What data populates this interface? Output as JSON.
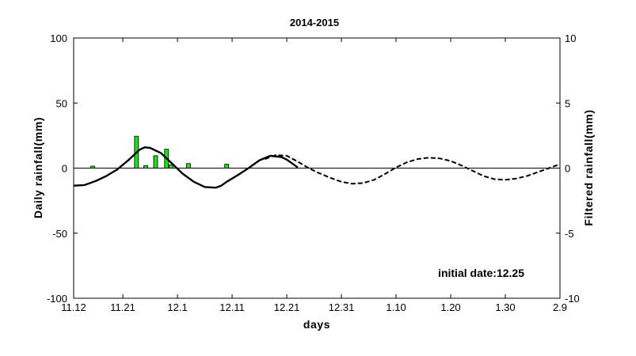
{
  "chart_data": {
    "type": "bar+line",
    "title": "2014-2015",
    "xlabel": "days",
    "ylabel_left": "Daily rainfall(mm)",
    "ylabel_right": "Filtered rainfall(mm)",
    "annotation": "initial date:12.25",
    "xlim": [
      0,
      89
    ],
    "ylim_left": [
      -100,
      100
    ],
    "ylim_right": [
      -10,
      10
    ],
    "x_ticks": [
      {
        "x": 0,
        "label": "11.12"
      },
      {
        "x": 9,
        "label": "11.21"
      },
      {
        "x": 19,
        "label": "12.1"
      },
      {
        "x": 29,
        "label": "12.11"
      },
      {
        "x": 39,
        "label": "12.21"
      },
      {
        "x": 49,
        "label": "12.31"
      },
      {
        "x": 59,
        "label": "1.10"
      },
      {
        "x": 69,
        "label": "1.20"
      },
      {
        "x": 79,
        "label": "1.30"
      },
      {
        "x": 89,
        "label": "2.9"
      }
    ],
    "y_ticks_left": [
      -100,
      -50,
      0,
      50,
      100
    ],
    "y_ticks_right": [
      -10,
      -5,
      0,
      5,
      10
    ],
    "grid": false,
    "zero_line": true,
    "bar_color": "#22dd22",
    "series": [
      {
        "kind": "bar",
        "axis": "left",
        "x": [
          3.5,
          11.5,
          13.2,
          15,
          17,
          17.8,
          21,
          28
        ],
        "values": [
          1.5,
          24.5,
          2,
          9.5,
          14.5,
          2.5,
          3.5,
          3
        ]
      },
      {
        "kind": "line",
        "axis": "right",
        "style": "solid",
        "x": [
          0,
          2,
          4,
          6,
          8,
          10,
          12,
          13,
          14,
          16,
          18,
          20,
          22,
          24,
          26,
          27,
          28,
          30,
          32,
          34,
          36,
          38,
          39,
          40,
          41
        ],
        "values": [
          -1.35,
          -1.3,
          -1.0,
          -0.6,
          -0.1,
          0.6,
          1.4,
          1.6,
          1.55,
          1.15,
          0.35,
          -0.45,
          -1.05,
          -1.45,
          -1.5,
          -1.35,
          -1.05,
          -0.55,
          0.0,
          0.6,
          0.95,
          0.85,
          0.65,
          0.35,
          0.05
        ]
      },
      {
        "kind": "line",
        "axis": "right",
        "style": "dashed",
        "x": [
          35,
          37,
          39,
          41,
          43,
          45,
          47,
          49,
          51,
          53,
          55,
          57,
          59,
          61,
          63,
          65,
          67,
          69,
          71,
          73,
          75,
          77,
          79,
          81,
          83,
          85,
          87,
          89
        ],
        "values": [
          0.7,
          1.0,
          0.95,
          0.5,
          0.0,
          -0.4,
          -0.75,
          -1.05,
          -1.2,
          -1.15,
          -0.9,
          -0.45,
          0.05,
          0.45,
          0.7,
          0.8,
          0.75,
          0.55,
          0.2,
          -0.2,
          -0.6,
          -0.85,
          -0.9,
          -0.8,
          -0.6,
          -0.3,
          0.0,
          0.3
        ]
      }
    ]
  }
}
